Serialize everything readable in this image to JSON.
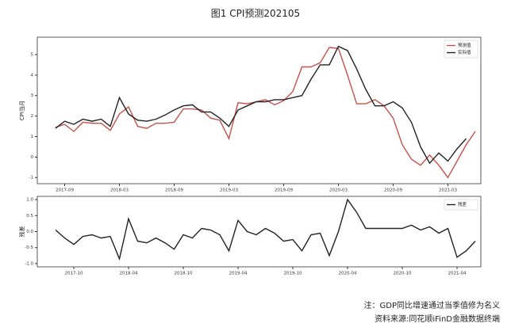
{
  "document": {
    "figure_title": "图1 CPI预测202105",
    "notes": [
      "注：GDP同比增速通过当季值修为名义",
      "资料来源:同花顺iFinD金融数据终端"
    ]
  },
  "chart_data": [
    {
      "type": "line",
      "ylabel": "CPI当月",
      "legend": "upper right",
      "categories": [
        null,
        "2017-09",
        null,
        null,
        null,
        null,
        null,
        "2018-03",
        null,
        null,
        null,
        null,
        null,
        "2018-09",
        null,
        null,
        null,
        null,
        null,
        "2019-03",
        null,
        null,
        null,
        null,
        null,
        "2019-09",
        null,
        null,
        null,
        null,
        null,
        "2020-03",
        null,
        null,
        null,
        null,
        null,
        "2020-09",
        null,
        null,
        null,
        null,
        null,
        "2021-03",
        null,
        null,
        null
      ],
      "ylim": [
        -1.3,
        5.85
      ],
      "yticks": [
        -1,
        0,
        1,
        2,
        3,
        4,
        5
      ],
      "series": [
        {
          "name": "预测值",
          "color": "#c8504a",
          "values": [
            1.45,
            1.6,
            1.25,
            1.7,
            1.65,
            1.65,
            1.3,
            2.1,
            2.45,
            1.5,
            1.4,
            1.65,
            1.65,
            1.7,
            2.35,
            2.35,
            2.3,
            1.9,
            1.8,
            0.9,
            2.65,
            2.6,
            2.7,
            2.8,
            2.55,
            2.75,
            3.2,
            4.4,
            4.4,
            4.6,
            5.35,
            5.3,
            4.0,
            2.6,
            2.6,
            2.8,
            2.5,
            1.9,
            0.6,
            -0.1,
            -0.4,
            0.1,
            -0.4,
            -1.0,
            -0.2,
            0.6,
            1.25
          ]
        },
        {
          "name": "实际值",
          "color": "#222222",
          "values": [
            1.4,
            1.75,
            1.6,
            1.85,
            1.75,
            1.85,
            1.5,
            2.9,
            2.1,
            1.8,
            1.75,
            1.85,
            2.05,
            2.3,
            2.5,
            2.55,
            2.2,
            2.2,
            1.9,
            1.5,
            2.3,
            2.5,
            2.7,
            2.7,
            2.8,
            2.8,
            2.9,
            3.0,
            3.8,
            4.5,
            4.5,
            5.4,
            5.2,
            4.3,
            3.3,
            2.5,
            2.5,
            2.7,
            2.4,
            1.7,
            0.5,
            -0.3,
            0.2,
            -0.2,
            0.4,
            0.9,
            null
          ]
        }
      ]
    },
    {
      "type": "line",
      "ylabel": "残差",
      "legend": "upper right",
      "categories": [
        null,
        null,
        "2017-10",
        null,
        null,
        null,
        null,
        null,
        "2018-04",
        null,
        null,
        null,
        null,
        null,
        "2018-10",
        null,
        null,
        null,
        null,
        null,
        "2019-04",
        null,
        null,
        null,
        null,
        null,
        "2019-10",
        null,
        null,
        null,
        null,
        null,
        "2020-04",
        null,
        null,
        null,
        null,
        null,
        "2020-10",
        null,
        null,
        null,
        null,
        null,
        "2021-04",
        null,
        null
      ],
      "ylim": [
        -1.1,
        1.1
      ],
      "yticks": [
        {
          "value": -1,
          "label": "-1.0"
        },
        {
          "value": -0.5,
          "label": "-0.5"
        },
        {
          "value": 0,
          "label": "0.0"
        },
        {
          "value": 0.5,
          "label": "0.5"
        },
        {
          "value": 1,
          "label": "1.0"
        }
      ],
      "series": [
        {
          "name": "残差",
          "color": "#222222",
          "values": [
            0.05,
            -0.2,
            -0.4,
            -0.15,
            -0.1,
            -0.2,
            -0.15,
            -0.85,
            0.4,
            -0.3,
            -0.35,
            -0.2,
            -0.35,
            -0.55,
            -0.1,
            -0.2,
            0.1,
            0.05,
            -0.1,
            -0.6,
            0.35,
            0.0,
            -0.1,
            0.1,
            -0.05,
            -0.3,
            -0.25,
            -0.6,
            -0.1,
            -0.05,
            -0.75,
            0.0,
            1.0,
            0.6,
            0.1,
            0.1,
            0.1,
            0.1,
            0.1,
            0.2,
            0.05,
            0.15,
            -0.05,
            0.1,
            -0.8,
            -0.6,
            -0.3
          ]
        }
      ]
    }
  ]
}
